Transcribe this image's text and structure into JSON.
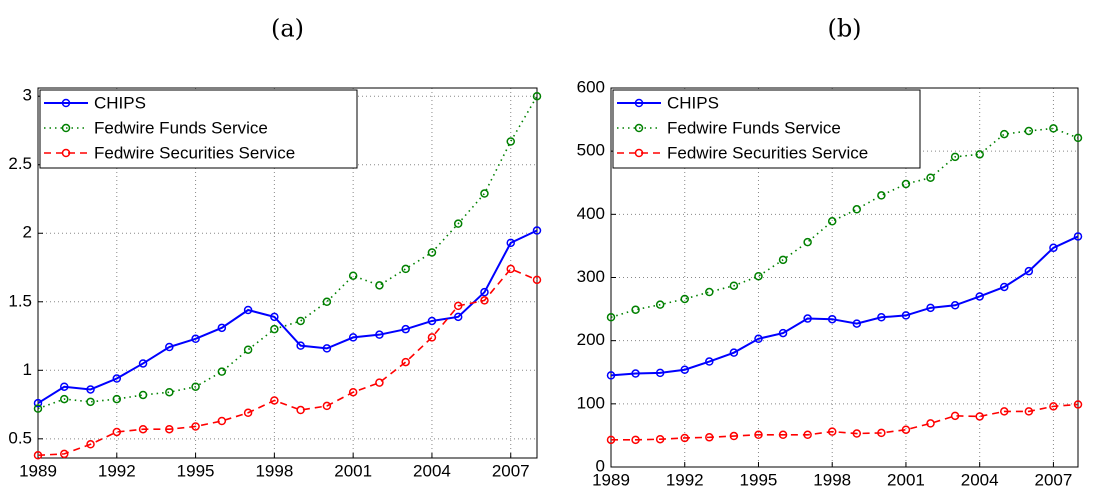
{
  "chart_data": [
    {
      "type": "line",
      "title": "(a)",
      "x": [
        1989,
        1990,
        1991,
        1992,
        1993,
        1994,
        1995,
        1996,
        1997,
        1998,
        1999,
        2000,
        2001,
        2002,
        2003,
        2004,
        2005,
        2006,
        2007,
        2008
      ],
      "series": [
        {
          "name": "CHIPS",
          "color": "#0000ff",
          "style": "solid",
          "values": [
            0.76,
            0.88,
            0.86,
            0.94,
            1.05,
            1.17,
            1.23,
            1.31,
            1.44,
            1.39,
            1.18,
            1.16,
            1.24,
            1.26,
            1.3,
            1.36,
            1.39,
            1.57,
            1.93,
            2.02
          ]
        },
        {
          "name": "Fedwire Funds Service",
          "color": "#008000",
          "style": "dotted",
          "values": [
            0.72,
            0.79,
            0.77,
            0.79,
            0.82,
            0.84,
            0.88,
            0.99,
            1.15,
            1.3,
            1.36,
            1.5,
            1.69,
            1.62,
            1.74,
            1.86,
            2.07,
            2.29,
            2.67,
            3.0
          ]
        },
        {
          "name": "Fedwire Securities Service",
          "color": "#ff0000",
          "style": "dashed",
          "values": [
            0.38,
            0.39,
            0.46,
            0.55,
            0.57,
            0.57,
            0.59,
            0.63,
            0.69,
            0.78,
            0.71,
            0.74,
            0.84,
            0.91,
            1.06,
            1.24,
            1.47,
            1.51,
            1.74,
            1.66
          ]
        }
      ],
      "xlim": [
        1989,
        2008
      ],
      "xticks": [
        1989,
        1992,
        1995,
        1998,
        2001,
        2004,
        2007
      ],
      "ylim": [
        0.36,
        3.06
      ],
      "yticks": [
        0.5,
        1,
        1.5,
        2,
        2.5,
        3
      ],
      "grid": true,
      "legend": "upper left"
    },
    {
      "type": "line",
      "title": "(b)",
      "x": [
        1989,
        1990,
        1991,
        1992,
        1993,
        1994,
        1995,
        1996,
        1997,
        1998,
        1999,
        2000,
        2001,
        2002,
        2003,
        2004,
        2005,
        2006,
        2007,
        2008
      ],
      "series": [
        {
          "name": "CHIPS",
          "color": "#0000ff",
          "style": "solid",
          "values": [
            145,
            148,
            149,
            154,
            167,
            181,
            203,
            212,
            235,
            234,
            227,
            237,
            240,
            252,
            256,
            270,
            285,
            310,
            347,
            365
          ]
        },
        {
          "name": "Fedwire Funds Service",
          "color": "#008000",
          "style": "dotted",
          "values": [
            237,
            249,
            257,
            266,
            277,
            287,
            302,
            328,
            356,
            389,
            408,
            430,
            448,
            458,
            491,
            495,
            527,
            532,
            536,
            521
          ]
        },
        {
          "name": "Fedwire Securities Service",
          "color": "#ff0000",
          "style": "dashed",
          "values": [
            43,
            43,
            44,
            46,
            47,
            49,
            51,
            51,
            51,
            56,
            53,
            54,
            59,
            69,
            81,
            80,
            88,
            88,
            96,
            99
          ]
        }
      ],
      "xlim": [
        1989,
        2008
      ],
      "xticks": [
        1989,
        1992,
        1995,
        1998,
        2001,
        2004,
        2007
      ],
      "ylim": [
        0,
        600
      ],
      "yticks": [
        0,
        100,
        200,
        300,
        400,
        500,
        600
      ],
      "grid": true,
      "legend": "upper left"
    }
  ]
}
